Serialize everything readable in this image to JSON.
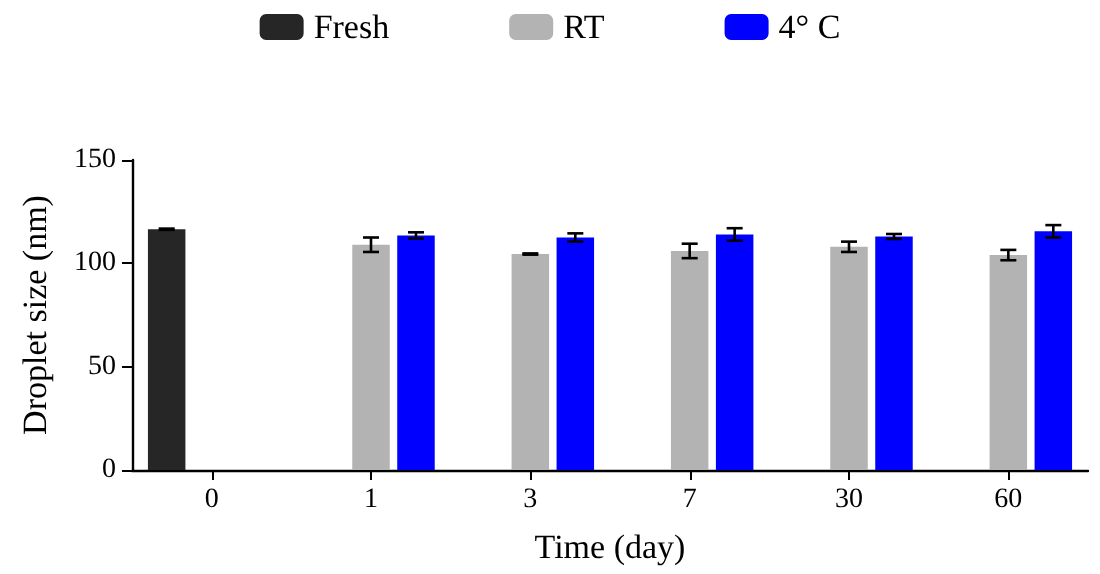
{
  "chart_data": {
    "type": "bar",
    "xlabel": "Time (day)",
    "ylabel": "Droplet size (nm)",
    "categories": [
      "0",
      "1",
      "3",
      "7",
      "30",
      "60"
    ],
    "series": [
      {
        "name": "Fresh",
        "color": "#262626",
        "values": [
          116.5,
          null,
          null,
          null,
          null,
          null
        ],
        "errors": [
          0.3,
          null,
          null,
          null,
          null,
          null
        ]
      },
      {
        "name": "RT",
        "color": "#b3b3b3",
        "values": [
          null,
          109,
          104.5,
          106,
          108,
          104
        ],
        "errors": [
          null,
          3.5,
          0.3,
          3.5,
          2.5,
          2.5
        ]
      },
      {
        "name": "4° C",
        "color": "#0000ff",
        "values": [
          null,
          113.5,
          112.5,
          114,
          113,
          115.5
        ],
        "errors": [
          null,
          1.5,
          2,
          3,
          1.2,
          3
        ]
      }
    ],
    "ylim": [
      0,
      150
    ],
    "yticks": [
      0,
      50,
      100,
      150
    ],
    "grid": false,
    "legend": "top"
  }
}
